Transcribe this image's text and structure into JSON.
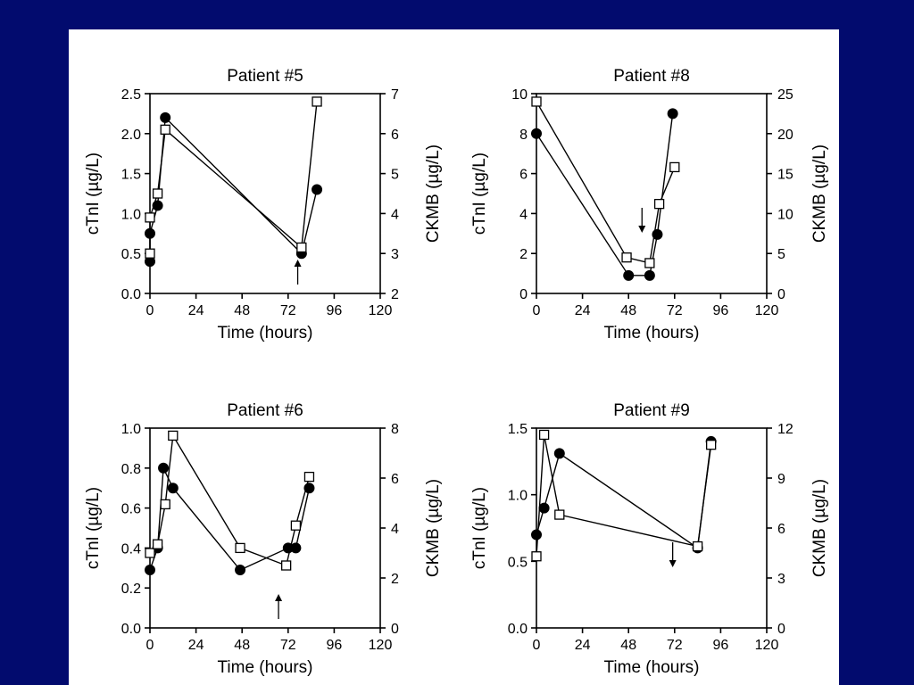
{
  "chart_data": [
    {
      "type": "line",
      "title": "Patient #5",
      "xlabel": "Time (hours)",
      "ylabel": "cTnI (µg/L)",
      "y2label": "CKMB (µg/L)",
      "xlim": [
        0,
        120
      ],
      "xticks": [
        0,
        24,
        48,
        72,
        96,
        120
      ],
      "ylim": [
        0,
        2.5
      ],
      "yticks": [
        "0.0",
        "0.5",
        "1.0",
        "1.5",
        "2.0",
        "2.5"
      ],
      "y2lim": [
        2,
        7
      ],
      "y2ticks": [
        "2",
        "3",
        "4",
        "5",
        "6",
        "7"
      ],
      "series": [
        {
          "marker": "filled-circle",
          "axis": "left",
          "x": [
            0,
            0,
            4,
            8,
            79,
            87
          ],
          "y": [
            0.4,
            0.75,
            1.1,
            2.2,
            0.5,
            1.3
          ]
        },
        {
          "marker": "open-square",
          "axis": "right",
          "x": [
            0,
            0,
            4,
            8,
            79,
            87
          ],
          "y": [
            3.0,
            3.9,
            4.5,
            6.1,
            3.15,
            6.8
          ]
        }
      ],
      "arrow": {
        "x": 77,
        "direction": "up"
      }
    },
    {
      "type": "line",
      "title": "Patient #8",
      "xlabel": "Time (hours)",
      "ylabel": "cTnI (µg/L)",
      "y2label": "CKMB (µg/L)",
      "xlim": [
        0,
        120
      ],
      "xticks": [
        0,
        24,
        48,
        72,
        96,
        120
      ],
      "ylim": [
        0,
        10
      ],
      "yticks": [
        "0",
        "2",
        "4",
        "6",
        "8",
        "10"
      ],
      "y2lim": [
        0,
        25
      ],
      "y2ticks": [
        "0",
        "5",
        "10",
        "15",
        "20",
        "25"
      ],
      "series": [
        {
          "marker": "filled-circle",
          "axis": "left",
          "x": [
            0,
            48,
            59,
            63,
            71
          ],
          "y": [
            8,
            0.9,
            0.9,
            2.95,
            9
          ]
        },
        {
          "marker": "open-square",
          "axis": "right",
          "x": [
            0,
            47,
            59,
            64,
            72
          ],
          "y": [
            24,
            4.5,
            3.8,
            11.2,
            15.8
          ]
        }
      ],
      "arrow": {
        "x": 55,
        "direction": "down"
      }
    },
    {
      "type": "line",
      "title": "Patient #6",
      "xlabel": "Time (hours)",
      "ylabel": "cTnI (µg/L)",
      "y2label": "CKMB (µg/L)",
      "xlim": [
        0,
        120
      ],
      "xticks": [
        0,
        24,
        48,
        72,
        96,
        120
      ],
      "ylim": [
        0,
        1.0
      ],
      "yticks": [
        "0.0",
        "0.2",
        "0.4",
        "0.6",
        "0.8",
        "1.0"
      ],
      "y2lim": [
        0,
        8
      ],
      "y2ticks": [
        "0",
        "2",
        "4",
        "6",
        "8"
      ],
      "series": [
        {
          "marker": "filled-circle",
          "axis": "left",
          "x": [
            0,
            4,
            7,
            12,
            47,
            72,
            76,
            83
          ],
          "y": [
            0.29,
            0.4,
            0.8,
            0.7,
            0.29,
            0.4,
            0.4,
            0.7
          ]
        },
        {
          "marker": "open-square",
          "axis": "right",
          "x": [
            0,
            4,
            8,
            12,
            47,
            71,
            76,
            83
          ],
          "y": [
            3.0,
            3.35,
            4.95,
            7.7,
            3.2,
            2.5,
            4.1,
            6.05
          ]
        }
      ],
      "arrow": {
        "x": 67,
        "direction": "up"
      }
    },
    {
      "type": "line",
      "title": "Patient #9",
      "xlabel": "Time (hours)",
      "ylabel": "cTnI (µg/L)",
      "y2label": "CKMB (µg/L)",
      "xlim": [
        0,
        120
      ],
      "xticks": [
        0,
        24,
        48,
        72,
        96,
        120
      ],
      "ylim": [
        0,
        1.5
      ],
      "yticks": [
        "0.0",
        "0.5",
        "1.0",
        "1.5"
      ],
      "y2lim": [
        0,
        12
      ],
      "y2ticks": [
        "0",
        "3",
        "6",
        "9",
        "12"
      ],
      "series": [
        {
          "marker": "filled-circle",
          "axis": "left",
          "x": [
            0,
            4,
            12,
            84,
            91
          ],
          "y": [
            0.7,
            0.9,
            1.31,
            0.6,
            1.4
          ]
        },
        {
          "marker": "open-square",
          "axis": "right",
          "x": [
            0,
            4,
            12,
            84,
            91
          ],
          "y": [
            4.3,
            11.6,
            6.8,
            4.9,
            11.0
          ]
        }
      ],
      "arrow": {
        "x": 71,
        "direction": "down"
      }
    }
  ]
}
